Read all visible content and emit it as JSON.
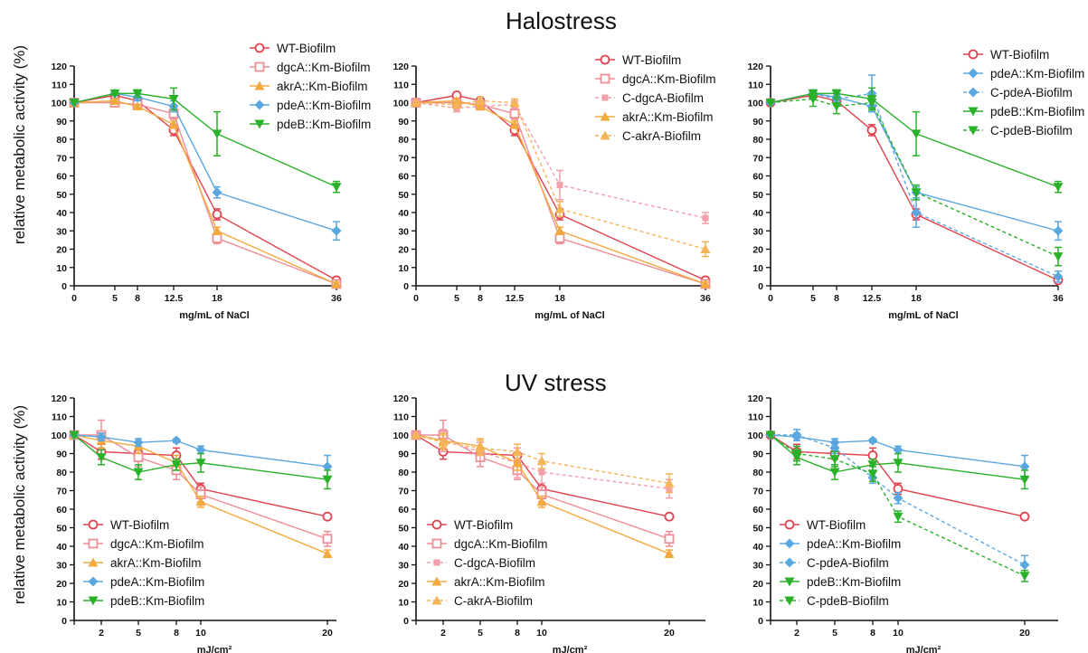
{
  "figure": {
    "row_titles": [
      "Halostress",
      "UV stress"
    ],
    "ylabel": "relative metabolic activity (%)"
  },
  "colors": {
    "WT": "#e0434f",
    "dgcA": "#ee8e96",
    "C-dgcA": "#f2a0aa",
    "akrA": "#f3a93e",
    "C-akrA": "#f5b458",
    "pdeA": "#5ba7df",
    "C-pdeA": "#5ba7df",
    "pdeB": "#2ab12a",
    "C-pdeB": "#2ab12a"
  },
  "chart_data": [
    {
      "type": "line",
      "row": 0,
      "col": 0,
      "title": "",
      "xlabel": "mg/mL of NaCl",
      "ylabel": "relative metabolic activity (%)",
      "x": [
        0,
        5,
        8,
        12.5,
        18,
        36
      ],
      "xticks": [
        "0",
        "5",
        "8",
        "12.5",
        "18",
        "36"
      ],
      "ylim": [
        0,
        120
      ],
      "yticks": [
        0,
        10,
        20,
        30,
        40,
        50,
        60,
        70,
        80,
        90,
        100,
        110,
        120
      ],
      "legend": "top-right",
      "series": [
        {
          "name": "WT-Biofilm",
          "key": "WT",
          "marker": "circle-open",
          "dashed": false,
          "values": [
            100,
            104,
            101,
            85,
            39,
            3
          ],
          "err": [
            0,
            1,
            2,
            3,
            3,
            1
          ]
        },
        {
          "name": "dgcA::Km-Biofilm",
          "key": "dgcA",
          "marker": "square-open",
          "dashed": false,
          "values": [
            100,
            100,
            99,
            94,
            26,
            1
          ],
          "err": [
            0,
            2,
            2,
            3,
            3,
            1
          ]
        },
        {
          "name": "akrA::Km-Biofilm",
          "key": "akrA",
          "marker": "triangle-up",
          "dashed": false,
          "values": [
            100,
            101,
            98,
            88,
            30,
            1
          ],
          "err": [
            0,
            1,
            1,
            2,
            2,
            1
          ]
        },
        {
          "name": "pdeA::Km-Biofilm",
          "key": "pdeA",
          "marker": "diamond",
          "dashed": false,
          "values": [
            100,
            105,
            103,
            98,
            51,
            30
          ],
          "err": [
            0,
            1,
            2,
            3,
            3,
            5
          ]
        },
        {
          "name": "pdeB::Km-Biofilm",
          "key": "pdeB",
          "marker": "triangle-down",
          "dashed": false,
          "values": [
            100,
            105,
            105,
            102,
            83,
            54
          ],
          "err": [
            0,
            1,
            2,
            6,
            12,
            3
          ]
        }
      ]
    },
    {
      "type": "line",
      "row": 0,
      "col": 1,
      "title": "",
      "xlabel": "mg/mL of NaCl",
      "ylabel": "",
      "x": [
        0,
        5,
        8,
        12.5,
        18,
        36
      ],
      "xticks": [
        "0",
        "5",
        "8",
        "12.5",
        "18",
        "36"
      ],
      "ylim": [
        0,
        120
      ],
      "yticks": [
        0,
        10,
        20,
        30,
        40,
        50,
        60,
        70,
        80,
        90,
        100,
        110,
        120
      ],
      "legend": "top-right",
      "series": [
        {
          "name": "WT-Biofilm",
          "key": "WT",
          "marker": "circle-open",
          "dashed": false,
          "values": [
            100,
            104,
            101,
            85,
            39,
            3
          ],
          "err": [
            0,
            1,
            2,
            3,
            3,
            1
          ]
        },
        {
          "name": "dgcA::Km-Biofilm",
          "key": "dgcA",
          "marker": "square-open",
          "dashed": false,
          "values": [
            100,
            100,
            99,
            94,
            26,
            1
          ],
          "err": [
            0,
            2,
            2,
            3,
            3,
            1
          ]
        },
        {
          "name": "C-dgcA-Biofilm",
          "key": "C-dgcA",
          "marker": "square",
          "dashed": true,
          "values": [
            100,
            97,
            98,
            99,
            55,
            37
          ],
          "err": [
            0,
            2,
            2,
            2,
            8,
            3
          ]
        },
        {
          "name": "akrA::Km-Biofilm",
          "key": "akrA",
          "marker": "triangle-up",
          "dashed": false,
          "values": [
            100,
            101,
            98,
            88,
            30,
            1
          ],
          "err": [
            0,
            1,
            1,
            2,
            2,
            1
          ]
        },
        {
          "name": "C-akrA-Biofilm",
          "key": "C-akrA",
          "marker": "triangle-up",
          "dashed": true,
          "values": [
            100,
            99,
            101,
            100,
            42,
            20
          ],
          "err": [
            0,
            2,
            2,
            2,
            4,
            4
          ]
        }
      ]
    },
    {
      "type": "line",
      "row": 0,
      "col": 2,
      "title": "",
      "xlabel": "mg/mL of NaCl",
      "ylabel": "",
      "x": [
        0,
        5,
        8,
        12.5,
        18,
        36
      ],
      "xticks": [
        "0",
        "5",
        "8",
        "12.5",
        "18",
        "36"
      ],
      "ylim": [
        0,
        120
      ],
      "yticks": [
        0,
        10,
        20,
        30,
        40,
        50,
        60,
        70,
        80,
        90,
        100,
        110,
        120
      ],
      "legend": "top-right",
      "series": [
        {
          "name": "WT-Biofilm",
          "key": "WT",
          "marker": "circle-open",
          "dashed": false,
          "values": [
            100,
            104,
            101,
            85,
            39,
            3
          ],
          "err": [
            0,
            1,
            2,
            3,
            3,
            1
          ]
        },
        {
          "name": "pdeA::Km-Biofilm",
          "key": "pdeA",
          "marker": "diamond",
          "dashed": false,
          "values": [
            100,
            105,
            103,
            98,
            51,
            30
          ],
          "err": [
            0,
            1,
            2,
            3,
            3,
            5
          ]
        },
        {
          "name": "C-pdeA-Biofilm",
          "key": "C-pdeA",
          "marker": "diamond",
          "dashed": true,
          "values": [
            100,
            105,
            102,
            105,
            40,
            5
          ],
          "err": [
            0,
            2,
            2,
            10,
            8,
            3
          ]
        },
        {
          "name": "pdeB::Km-Biofilm",
          "key": "pdeB",
          "marker": "triangle-down",
          "dashed": false,
          "values": [
            100,
            105,
            105,
            102,
            83,
            54
          ],
          "err": [
            0,
            1,
            2,
            6,
            12,
            3
          ]
        },
        {
          "name": "C-pdeB-Biofilm",
          "key": "C-pdeB",
          "marker": "triangle-down",
          "dashed": true,
          "values": [
            100,
            102,
            98,
            100,
            51,
            16
          ],
          "err": [
            0,
            4,
            4,
            3,
            4,
            5
          ]
        }
      ]
    },
    {
      "type": "line",
      "row": 1,
      "col": 0,
      "title": "",
      "xlabel": "mJ/cm²",
      "ylabel": "relative metabolic activity (%)",
      "x": [
        0,
        2,
        5,
        8,
        10,
        20
      ],
      "xticks": [
        "",
        "2",
        "5",
        "8",
        "10",
        "20"
      ],
      "ylim": [
        0,
        120
      ],
      "yticks": [
        0,
        10,
        20,
        30,
        40,
        50,
        60,
        70,
        80,
        90,
        100,
        110,
        120
      ],
      "legend": "bottom-left",
      "series": [
        {
          "name": "WT-Biofilm",
          "key": "WT",
          "marker": "circle-open",
          "dashed": false,
          "values": [
            100,
            91,
            90,
            89,
            71,
            56
          ],
          "err": [
            0,
            4,
            3,
            4,
            3,
            1
          ]
        },
        {
          "name": "dgcA::Km-Biofilm",
          "key": "dgcA",
          "marker": "square-open",
          "dashed": false,
          "values": [
            100,
            100,
            88,
            81,
            68,
            44
          ],
          "err": [
            0,
            8,
            5,
            5,
            4,
            4
          ]
        },
        {
          "name": "akrA::Km-Biofilm",
          "key": "akrA",
          "marker": "triangle-up",
          "dashed": false,
          "values": [
            100,
            97,
            94,
            85,
            64,
            36
          ],
          "err": [
            0,
            4,
            4,
            4,
            3,
            2
          ]
        },
        {
          "name": "pdeA::Km-Biofilm",
          "key": "pdeA",
          "marker": "diamond",
          "dashed": false,
          "values": [
            100,
            99,
            96,
            97,
            92,
            83
          ],
          "err": [
            0,
            2,
            2,
            1,
            2,
            6
          ]
        },
        {
          "name": "pdeB::Km-Biofilm",
          "key": "pdeB",
          "marker": "triangle-down",
          "dashed": false,
          "values": [
            100,
            88,
            80,
            84,
            85,
            76
          ],
          "err": [
            0,
            4,
            4,
            3,
            5,
            5
          ]
        }
      ]
    },
    {
      "type": "line",
      "row": 1,
      "col": 1,
      "title": "",
      "xlabel": "mJ/cm²",
      "ylabel": "",
      "x": [
        0,
        2,
        5,
        8,
        10,
        20
      ],
      "xticks": [
        "",
        "2",
        "5",
        "8",
        "10",
        "20"
      ],
      "ylim": [
        0,
        120
      ],
      "yticks": [
        0,
        10,
        20,
        30,
        40,
        50,
        60,
        70,
        80,
        90,
        100,
        110,
        120
      ],
      "legend": "bottom-left",
      "series": [
        {
          "name": "WT-Biofilm",
          "key": "WT",
          "marker": "circle-open",
          "dashed": false,
          "values": [
            100,
            91,
            90,
            89,
            71,
            56
          ],
          "err": [
            0,
            4,
            3,
            4,
            3,
            1
          ]
        },
        {
          "name": "dgcA::Km-Biofilm",
          "key": "dgcA",
          "marker": "square-open",
          "dashed": false,
          "values": [
            100,
            100,
            88,
            81,
            68,
            44
          ],
          "err": [
            0,
            8,
            5,
            5,
            4,
            4
          ]
        },
        {
          "name": "C-dgcA-Biofilm",
          "key": "C-dgcA",
          "marker": "square",
          "dashed": true,
          "values": [
            100,
            97,
            91,
            85,
            80,
            71
          ],
          "err": [
            0,
            6,
            5,
            8,
            6,
            5
          ]
        },
        {
          "name": "akrA::Km-Biofilm",
          "key": "akrA",
          "marker": "triangle-up",
          "dashed": false,
          "values": [
            100,
            97,
            94,
            85,
            64,
            36
          ],
          "err": [
            0,
            4,
            4,
            4,
            3,
            2
          ]
        },
        {
          "name": "C-akrA-Biofilm",
          "key": "C-akrA",
          "marker": "triangle-up",
          "dashed": true,
          "values": [
            100,
            96,
            93,
            91,
            86,
            74
          ],
          "err": [
            0,
            4,
            4,
            4,
            4,
            5
          ]
        }
      ]
    },
    {
      "type": "line",
      "row": 1,
      "col": 2,
      "title": "",
      "xlabel": "mJ/cm²",
      "ylabel": "",
      "x": [
        0,
        2,
        5,
        8,
        10,
        20
      ],
      "xticks": [
        "",
        "2",
        "5",
        "8",
        "10",
        "20"
      ],
      "ylim": [
        0,
        120
      ],
      "yticks": [
        0,
        10,
        20,
        30,
        40,
        50,
        60,
        70,
        80,
        90,
        100,
        110,
        120
      ],
      "legend": "bottom-left",
      "series": [
        {
          "name": "WT-Biofilm",
          "key": "WT",
          "marker": "circle-open",
          "dashed": false,
          "values": [
            100,
            91,
            90,
            89,
            71,
            56
          ],
          "err": [
            0,
            4,
            3,
            4,
            3,
            1
          ]
        },
        {
          "name": "pdeA::Km-Biofilm",
          "key": "pdeA",
          "marker": "diamond",
          "dashed": false,
          "values": [
            100,
            99,
            96,
            97,
            92,
            83
          ],
          "err": [
            0,
            2,
            2,
            1,
            2,
            6
          ]
        },
        {
          "name": "C-pdeA-Biofilm",
          "key": "C-pdeA",
          "marker": "diamond",
          "dashed": true,
          "values": [
            100,
            100,
            93,
            77,
            66,
            30
          ],
          "err": [
            0,
            3,
            3,
            3,
            3,
            5
          ]
        },
        {
          "name": "pdeB::Km-Biofilm",
          "key": "pdeB",
          "marker": "triangle-down",
          "dashed": false,
          "values": [
            100,
            88,
            80,
            84,
            85,
            76
          ],
          "err": [
            0,
            4,
            4,
            3,
            5,
            5
          ]
        },
        {
          "name": "C-pdeB-Biofilm",
          "key": "C-pdeB",
          "marker": "triangle-down",
          "dashed": true,
          "values": [
            100,
            90,
            87,
            79,
            56,
            24
          ],
          "err": [
            0,
            4,
            4,
            4,
            3,
            3
          ]
        }
      ]
    }
  ]
}
